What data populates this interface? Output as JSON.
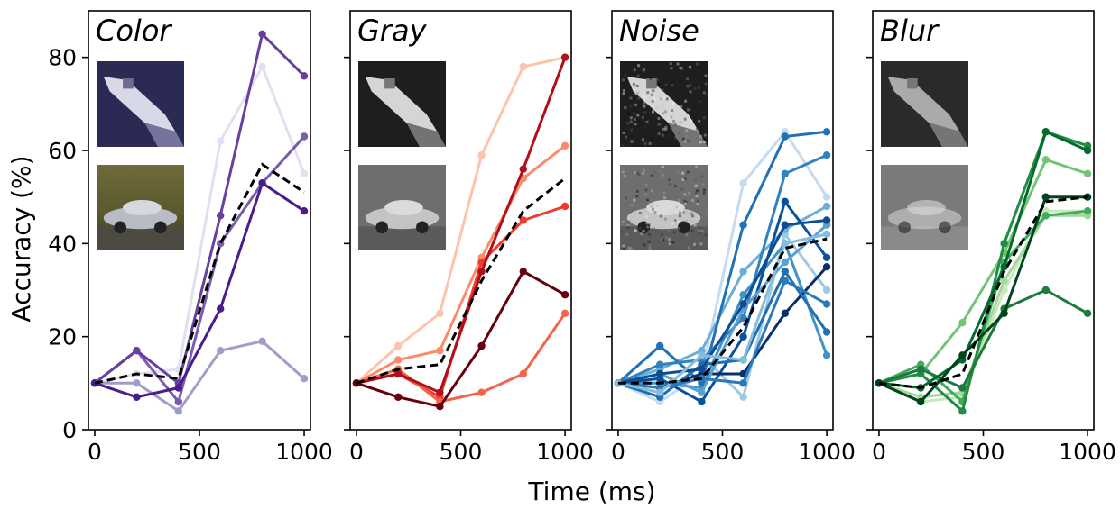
{
  "figure": {
    "xlabel": "Time (ms)",
    "ylabel": "Accuracy (%)"
  },
  "chart_data": [
    {
      "type": "line",
      "title": "Color",
      "xlim": [
        -30,
        1030
      ],
      "ylim": [
        0,
        90
      ],
      "x_ticks": [
        0,
        500,
        1000
      ],
      "y_ticks": [
        0,
        20,
        40,
        60,
        80
      ],
      "x": [
        0,
        200,
        400,
        600,
        800,
        1000
      ],
      "thumbnails": [
        "boat",
        "car"
      ],
      "series": [
        {
          "color": "#e2e0f0",
          "values": [
            10,
            12,
            13,
            62,
            78,
            55
          ]
        },
        {
          "color": "#a29cca",
          "values": [
            10,
            10,
            4,
            17,
            19,
            11
          ]
        },
        {
          "color": "#7a5cae",
          "values": [
            10,
            17,
            6,
            40,
            53,
            63
          ]
        },
        {
          "color": "#6a3ea1",
          "values": [
            10,
            17,
            10,
            46,
            85,
            76
          ]
        },
        {
          "color": "#4a1c8c",
          "values": [
            10,
            7,
            9,
            26,
            53,
            47
          ]
        },
        {
          "color": "#000000",
          "dashed": true,
          "values": [
            10,
            12,
            11,
            40,
            57,
            51
          ]
        }
      ]
    },
    {
      "type": "line",
      "title": "Gray",
      "xlim": [
        -30,
        1030
      ],
      "ylim": [
        0,
        90
      ],
      "x_ticks": [
        0,
        500,
        1000
      ],
      "x": [
        0,
        200,
        400,
        600,
        800,
        1000
      ],
      "thumbnails": [
        "boat",
        "car"
      ],
      "series": [
        {
          "color": "#fcc4ad",
          "values": [
            10,
            18,
            25,
            59,
            78,
            80
          ]
        },
        {
          "color": "#fb8b6a",
          "values": [
            10,
            15,
            17,
            37,
            54,
            61
          ]
        },
        {
          "color": "#ef3b2c",
          "values": [
            10,
            12,
            7,
            36,
            45,
            48
          ]
        },
        {
          "color": "#f4634a",
          "values": [
            10,
            13,
            6,
            8,
            12,
            25
          ]
        },
        {
          "color": "#b0101a",
          "values": [
            10,
            12,
            8,
            34,
            56,
            80
          ]
        },
        {
          "color": "#67000d",
          "values": [
            10,
            7,
            5,
            18,
            34,
            29
          ]
        },
        {
          "color": "#000000",
          "dashed": true,
          "values": [
            10,
            13,
            14,
            32,
            47,
            54
          ]
        }
      ]
    },
    {
      "type": "line",
      "title": "Noise",
      "xlim": [
        -30,
        1030
      ],
      "ylim": [
        0,
        90
      ],
      "x_ticks": [
        0,
        500,
        1000
      ],
      "x": [
        0,
        200,
        400,
        600,
        800,
        1000
      ],
      "thumbnails": [
        "boat",
        "car"
      ],
      "series": [
        {
          "color": "#c6dbef",
          "values": [
            10,
            6,
            12,
            53,
            64,
            50
          ]
        },
        {
          "color": "#9ecae1",
          "values": [
            10,
            8,
            16,
            7,
            42,
            30
          ]
        },
        {
          "color": "#6baed6",
          "values": [
            10,
            13,
            17,
            34,
            43,
            48
          ]
        },
        {
          "color": "#4292c6",
          "values": [
            10,
            10,
            9,
            29,
            40,
            16
          ]
        },
        {
          "color": "#2171b5",
          "values": [
            10,
            18,
            10,
            44,
            63,
            64
          ]
        },
        {
          "color": "#08519c",
          "values": [
            10,
            11,
            6,
            20,
            49,
            37
          ]
        },
        {
          "color": "#08306b",
          "values": [
            10,
            9,
            12,
            12,
            25,
            35
          ]
        },
        {
          "color": "#3182bd",
          "values": [
            10,
            14,
            15,
            24,
            55,
            59
          ]
        },
        {
          "color": "#1f6fb2",
          "values": [
            10,
            7,
            14,
            15,
            34,
            21
          ]
        },
        {
          "color": "#5aa0d0",
          "values": [
            10,
            12,
            8,
            26,
            36,
            44
          ]
        },
        {
          "color": "#2a7ab9",
          "values": [
            10,
            9,
            11,
            10,
            32,
            27
          ]
        },
        {
          "color": "#0e4d92",
          "values": [
            10,
            12,
            13,
            27,
            44,
            45
          ]
        },
        {
          "color": "#87bddc",
          "values": [
            10,
            8,
            16,
            15,
            40,
            42
          ]
        },
        {
          "color": "#000000",
          "dashed": true,
          "values": [
            10,
            10,
            11,
            22,
            39,
            41
          ]
        }
      ]
    },
    {
      "type": "line",
      "title": "Blur",
      "xlim": [
        -30,
        1030
      ],
      "ylim": [
        0,
        90
      ],
      "x_ticks": [
        0,
        500,
        1000
      ],
      "x": [
        0,
        200,
        400,
        600,
        800,
        1000
      ],
      "thumbnails": [
        "boat",
        "car"
      ],
      "series": [
        {
          "color": "#c7e9c0",
          "values": [
            10,
            6,
            7,
            30,
            47,
            47
          ]
        },
        {
          "color": "#a1d99b",
          "values": [
            10,
            7,
            8,
            32,
            46,
            46
          ]
        },
        {
          "color": "#74c476",
          "values": [
            10,
            12,
            23,
            38,
            58,
            55
          ]
        },
        {
          "color": "#41ab5d",
          "values": [
            10,
            14,
            6,
            36,
            46,
            47
          ]
        },
        {
          "color": "#238b45",
          "values": [
            10,
            12,
            4,
            40,
            64,
            61
          ]
        },
        {
          "color": "#1c7a3c",
          "values": [
            10,
            13,
            9,
            26,
            30,
            25
          ]
        },
        {
          "color": "#006d2c",
          "values": [
            10,
            9,
            15,
            35,
            64,
            60
          ]
        },
        {
          "color": "#00441b",
          "values": [
            10,
            6,
            16,
            25,
            50,
            50
          ]
        },
        {
          "color": "#000000",
          "dashed": true,
          "values": [
            10,
            9,
            12,
            34,
            49,
            50
          ]
        }
      ]
    }
  ]
}
